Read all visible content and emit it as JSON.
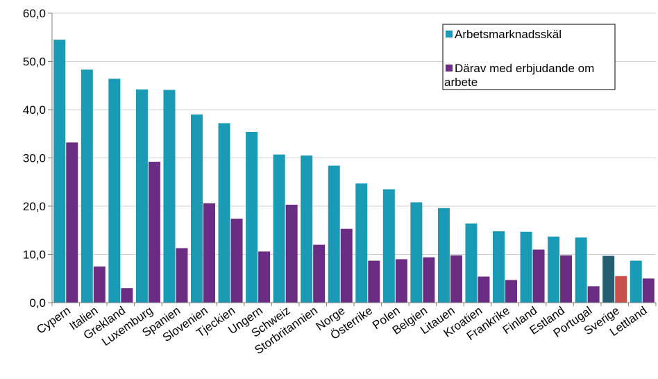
{
  "chart_data": {
    "type": "bar",
    "title": "",
    "xlabel": "",
    "ylabel": "",
    "ylim": [
      0,
      60
    ],
    "yticks": [
      "0,0",
      "10,0",
      "20,0",
      "30,0",
      "40,0",
      "50,0",
      "60,0"
    ],
    "grid": true,
    "legend_position": "top-right",
    "categories": [
      "Cypern",
      "Italien",
      "Grekland",
      "Luxemburg",
      "Spanien",
      "Slovenien",
      "Tjeckien",
      "Ungern",
      "Schweiz",
      "Storbritannien",
      "Norge",
      "Österrike",
      "Polen",
      "Belgien",
      "Litauen",
      "Kroatien",
      "Frankrike",
      "Finland",
      "Estland",
      "Portugal",
      "Sverige",
      "Lettland"
    ],
    "series": [
      {
        "name": "Arbetsmarknadsskäl",
        "color": "#1a9bb5",
        "values": [
          54.5,
          48.3,
          46.4,
          44.2,
          44.1,
          39.0,
          37.2,
          35.4,
          30.7,
          30.5,
          28.4,
          24.7,
          23.5,
          20.8,
          19.6,
          16.4,
          14.8,
          14.7,
          13.7,
          13.5,
          9.7,
          8.7
        ]
      },
      {
        "name": "Därav med erbjudande om arbete",
        "color": "#6b2c84",
        "values": [
          33.2,
          7.5,
          3.0,
          29.2,
          11.3,
          20.6,
          17.4,
          10.6,
          20.3,
          12.0,
          15.3,
          8.7,
          9.0,
          9.4,
          9.8,
          5.4,
          4.7,
          11.0,
          9.8,
          3.4,
          5.5,
          5.0
        ]
      }
    ],
    "highlight": {
      "category": "Sverige",
      "colors": [
        "#235f70",
        "#c9504d"
      ]
    }
  }
}
